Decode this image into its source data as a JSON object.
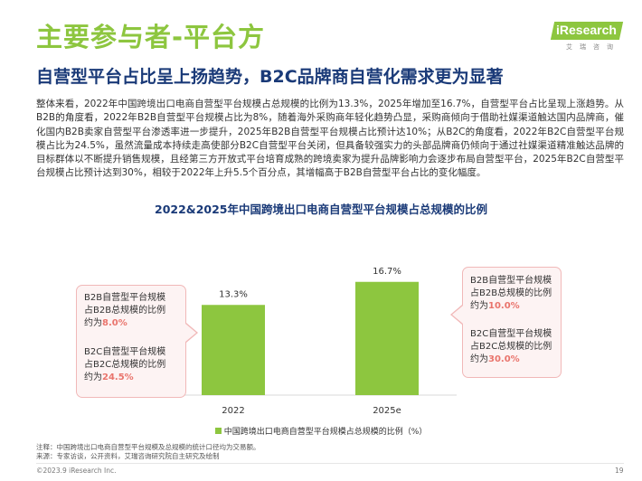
{
  "header": {
    "title": "主要参与者-平台方",
    "subtitle": "自营型平台占比呈上扬趋势，B2C品牌商自营化需求更为显著",
    "logo_text": "iResearch",
    "logo_sub": "艾瑞咨询"
  },
  "body": {
    "paragraph": "整体来看，2022年中国跨境出口电商自营型平台规模占总规模的比例为13.3%，2025年增加至16.7%，自营型平台占比呈现上涨趋势。从B2B的角度看，2022年B2B自营型平台规模占比为8%，随着海外采购商年轻化趋势凸显，采购商倾向于借助社媒渠道触达国内品牌商，催化国内B2B卖家自营型平台渗透率进一步提升，2025年B2B自营型平台规模占比预计达10%；从B2C的角度看，2022年B2C自营型平台规模占比为24.5%，虽然流量成本持续走高使部分B2C自营型平台关闭，但具备较强实力的头部品牌商仍倾向于通过社媒渠道精准触达品牌的目标群体以不断提升销售规模，且经第三方开放式平台培育成熟的跨境卖家为提升品牌影响力会逐步布局自营型平台，2025年B2C自营型平台规模占比预计达到30%，相较于2022年上升5.5个百分点，其增幅高于B2B自营型平台占比的变化幅度。"
  },
  "chart_data": {
    "type": "bar",
    "title": "2022&2025年中国跨境出口电商自营型平台规模占总规模的比例",
    "categories": [
      "2022",
      "2025e"
    ],
    "series": [
      {
        "name": "中国跨境出口电商自营型平台规模占总规模的比例（%）",
        "values": [
          13.3,
          16.7
        ],
        "color": "#8dc63f"
      }
    ],
    "value_labels": [
      "13.3%",
      "16.7%"
    ],
    "ylim": [
      0,
      20
    ],
    "grid": false,
    "legend_position": "bottom"
  },
  "callouts": {
    "left": {
      "b2b_l1": "B2B自营型平台规模",
      "b2b_l2": "占B2B总规模的比例",
      "b2b_l3_prefix": "约为",
      "b2b_value": "8.0%",
      "b2c_l1": "B2C自营型平台规模",
      "b2c_l2": "占B2C总规模的比例",
      "b2c_l3_prefix": "约为",
      "b2c_value": "24.5%"
    },
    "right": {
      "b2b_l1": "B2B自营型平台规模",
      "b2b_l2": "占B2B总规模的比例",
      "b2b_l3_prefix": "约为",
      "b2b_value": "10.0%",
      "b2c_l1": "B2C自营型平台规模",
      "b2c_l2": "占B2C总规模的比例",
      "b2c_l3_prefix": "约为",
      "b2c_value": "30.0%"
    }
  },
  "footer": {
    "note": "注释：中国跨境出口电商自营型平台规模及总规模的统计口径均为交易额。",
    "source": "来源：专家访谈，公开资料，艾瑞咨询研究院自主研究及绘制",
    "copyright": "©2023.9 iResearch Inc.",
    "page": "19"
  }
}
